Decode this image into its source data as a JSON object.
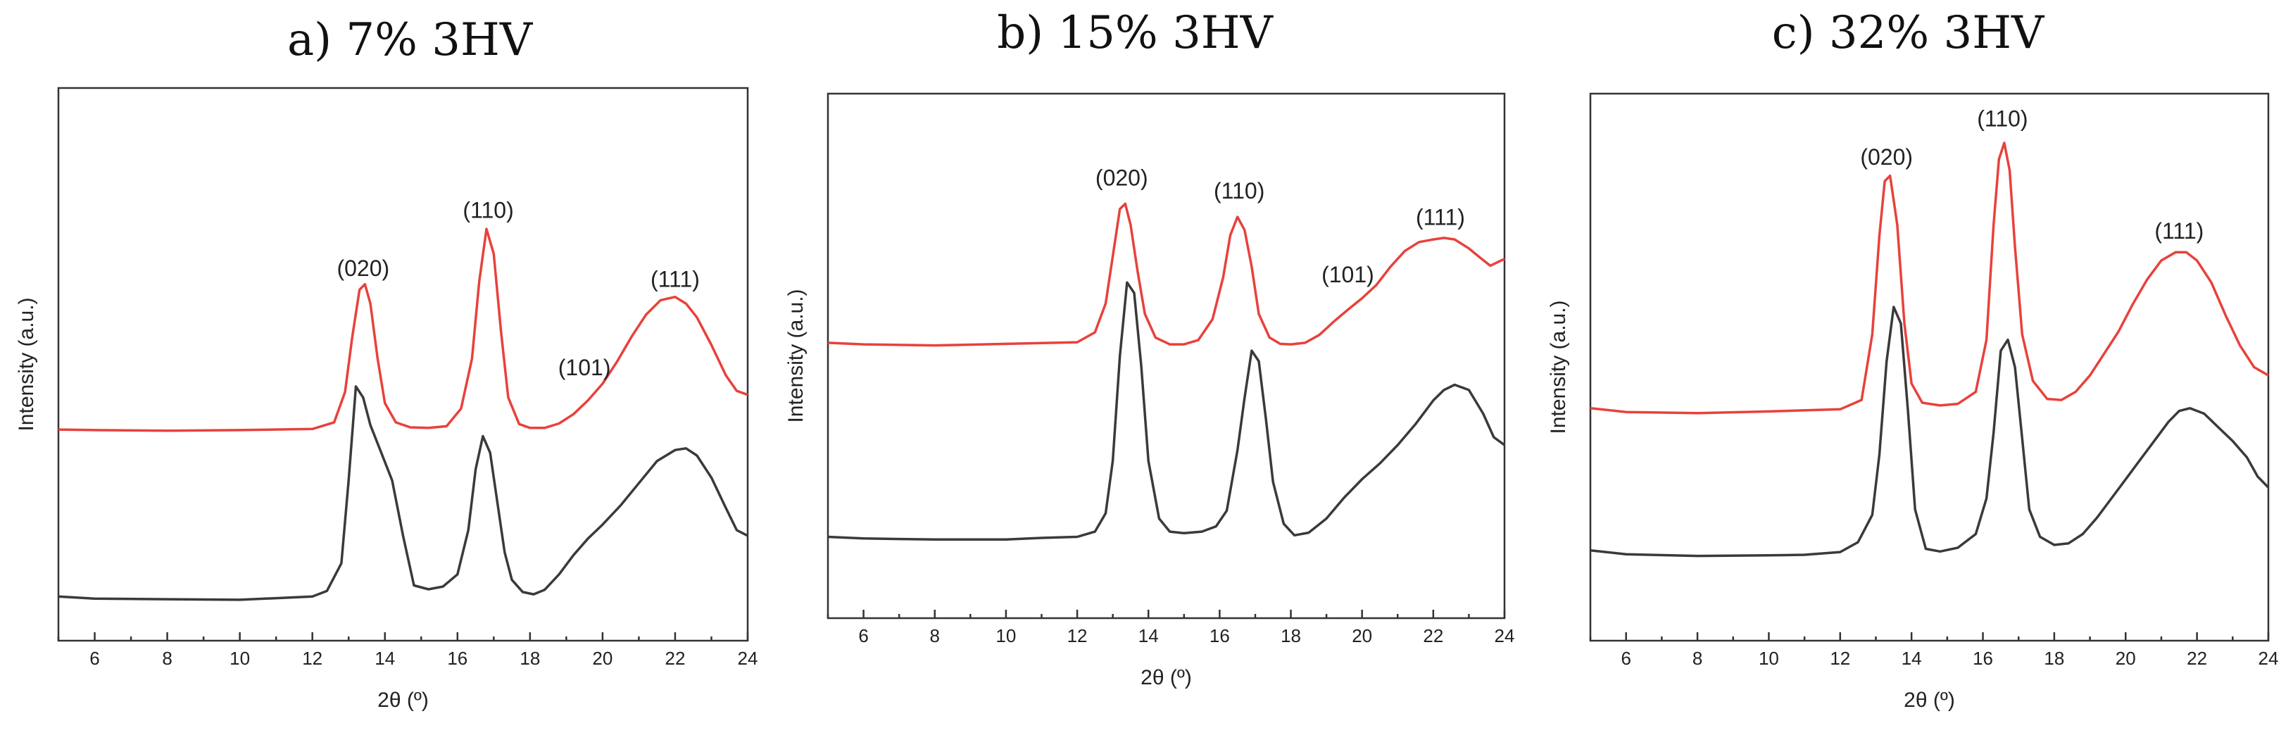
{
  "chart_data": [
    {
      "type": "line",
      "title": "a)  7% 3HV",
      "xlabel": "2θ (º)",
      "ylabel": "Intensity (a.u.)",
      "xlim": [
        5,
        24
      ],
      "ylim": [
        0,
        100
      ],
      "xticks": [
        6,
        8,
        10,
        12,
        14,
        16,
        18,
        20,
        22,
        24
      ],
      "series": [
        {
          "name": "upper (red)",
          "color": "#e8413c",
          "x": [
            5,
            6,
            8,
            10,
            12,
            12.6,
            12.9,
            13.1,
            13.3,
            13.45,
            13.6,
            13.8,
            14.0,
            14.3,
            14.7,
            15.2,
            15.7,
            16.1,
            16.4,
            16.6,
            16.8,
            17.0,
            17.2,
            17.4,
            17.7,
            18.0,
            18.4,
            18.8,
            19.2,
            19.6,
            20.0,
            20.4,
            20.8,
            21.2,
            21.6,
            22.0,
            22.3,
            22.6,
            23.0,
            23.4,
            23.7,
            24
          ],
          "y": [
            38.2,
            38.1,
            38.0,
            38.1,
            38.3,
            39.5,
            45,
            55,
            63.5,
            64.5,
            61,
            51,
            43,
            39.5,
            38.6,
            38.5,
            38.8,
            42,
            51,
            65,
            74.5,
            70,
            56,
            44,
            39.2,
            38.5,
            38.5,
            39.3,
            41,
            43.5,
            46.5,
            50.5,
            55,
            59,
            61.6,
            62.2,
            61,
            58.5,
            53.5,
            48,
            45.2,
            44.5
          ]
        },
        {
          "name": "lower (black)",
          "color": "#3a3a3a",
          "x": [
            5,
            6,
            8,
            10,
            11,
            12,
            12.4,
            12.8,
            13.0,
            13.2,
            13.4,
            13.6,
            13.9,
            14.2,
            14.5,
            14.8,
            15.2,
            15.6,
            16.0,
            16.3,
            16.5,
            16.7,
            16.9,
            17.1,
            17.3,
            17.5,
            17.8,
            18.1,
            18.4,
            18.8,
            19.2,
            19.6,
            20.0,
            20.5,
            21.0,
            21.5,
            22.0,
            22.3,
            22.6,
            23.0,
            23.4,
            23.7,
            24
          ],
          "y": [
            8.0,
            7.6,
            7.5,
            7.4,
            7.7,
            8.0,
            9.0,
            14,
            29,
            46,
            44,
            39,
            34,
            29,
            19,
            10,
            9.3,
            9.8,
            12,
            20,
            31,
            37,
            34,
            25,
            16,
            11,
            8.8,
            8.4,
            9.2,
            12,
            15.5,
            18.5,
            21,
            24.5,
            28.5,
            32.5,
            34.5,
            34.8,
            33.5,
            29.5,
            24,
            20,
            19
          ]
        }
      ],
      "annotations": [
        {
          "text": "(020)",
          "x": 13.4,
          "y": 66
        },
        {
          "text": "(110)",
          "x": 16.85,
          "y": 76.5
        },
        {
          "text": "(101)",
          "x": 19.5,
          "y": 48
        },
        {
          "text": "(111)",
          "x": 22.0,
          "y": 64
        }
      ]
    },
    {
      "type": "line",
      "title": "b) 15% 3HV",
      "xlabel": "2θ (º)",
      "ylabel": "Intensity (a.u.)",
      "xlim": [
        5,
        24
      ],
      "ylim": [
        0,
        100
      ],
      "xticks": [
        6,
        8,
        10,
        12,
        14,
        16,
        18,
        20,
        22,
        24
      ],
      "series": [
        {
          "name": "upper (red)",
          "color": "#e8413c",
          "x": [
            5,
            6,
            8,
            10,
            12,
            12.5,
            12.8,
            13.0,
            13.2,
            13.35,
            13.5,
            13.7,
            13.9,
            14.2,
            14.6,
            15.0,
            15.4,
            15.8,
            16.1,
            16.3,
            16.5,
            16.7,
            16.9,
            17.1,
            17.4,
            17.7,
            18.0,
            18.4,
            18.8,
            19.2,
            19.6,
            20.0,
            20.4,
            20.8,
            21.2,
            21.6,
            22.0,
            22.3,
            22.6,
            23.0,
            23.3,
            23.6,
            24
          ],
          "y": [
            52.5,
            52.2,
            52.0,
            52.3,
            52.6,
            54.5,
            60,
            69,
            78,
            79,
            75,
            66,
            58,
            53.5,
            52.2,
            52.2,
            53,
            57,
            65,
            73,
            76.5,
            74,
            67,
            58,
            53.5,
            52.3,
            52.2,
            52.5,
            54,
            56.5,
            58.8,
            61,
            63.5,
            67,
            70,
            71.7,
            72.2,
            72.5,
            72.2,
            70.5,
            68.8,
            67.2,
            68.5
          ]
        },
        {
          "name": "lower (black)",
          "color": "#3a3a3a",
          "x": [
            5,
            6,
            8,
            10,
            11,
            12,
            12.5,
            12.8,
            13.0,
            13.2,
            13.4,
            13.6,
            13.8,
            14.0,
            14.3,
            14.6,
            15.0,
            15.5,
            15.9,
            16.2,
            16.5,
            16.7,
            16.9,
            17.1,
            17.3,
            17.5,
            17.8,
            18.1,
            18.5,
            19.0,
            19.5,
            20.0,
            20.5,
            21.0,
            21.5,
            22.0,
            22.3,
            22.6,
            23.0,
            23.4,
            23.7,
            24
          ],
          "y": [
            15.5,
            15.2,
            15.0,
            15.0,
            15.3,
            15.5,
            16.5,
            20,
            30,
            50,
            64,
            62,
            48,
            30,
            19,
            16.5,
            16.2,
            16.5,
            17.5,
            20.5,
            32,
            42,
            51,
            49,
            38,
            26,
            18,
            15.8,
            16.3,
            19,
            23,
            26.5,
            29.5,
            33,
            37,
            41.5,
            43.5,
            44.5,
            43.5,
            39,
            34.5,
            33
          ]
        }
      ],
      "annotations": [
        {
          "text": "(020)",
          "x": 13.25,
          "y": 82.5
        },
        {
          "text": "(110)",
          "x": 16.55,
          "y": 80
        },
        {
          "text": "(101)",
          "x": 19.6,
          "y": 64
        },
        {
          "text": "(111)",
          "x": 22.2,
          "y": 75
        }
      ]
    },
    {
      "type": "line",
      "title": "c) 32% 3HV",
      "xlabel": "2θ (º)",
      "ylabel": "Intensity (a.u.)",
      "xlim": [
        5,
        24
      ],
      "ylim": [
        0,
        100
      ],
      "xticks": [
        6,
        8,
        10,
        12,
        14,
        16,
        18,
        20,
        22,
        24
      ],
      "series": [
        {
          "name": "upper (red)",
          "color": "#e8413c",
          "x": [
            5,
            6,
            8,
            10,
            12,
            12.6,
            12.9,
            13.1,
            13.25,
            13.4,
            13.6,
            13.8,
            14.0,
            14.3,
            14.8,
            15.3,
            15.8,
            16.1,
            16.3,
            16.45,
            16.6,
            16.75,
            16.9,
            17.1,
            17.4,
            17.8,
            18.2,
            18.6,
            19.0,
            19.4,
            19.8,
            20.2,
            20.6,
            21.0,
            21.4,
            21.7,
            22.0,
            22.4,
            22.8,
            23.2,
            23.6,
            24
          ],
          "y": [
            42.5,
            41.8,
            41.6,
            41.9,
            42.3,
            44,
            56,
            74,
            84,
            85,
            76,
            58,
            47,
            43.5,
            43,
            43.3,
            45.5,
            55,
            76,
            88,
            91,
            86,
            72,
            56,
            47.5,
            44.2,
            44,
            45.5,
            48.5,
            52.5,
            56.5,
            61.5,
            66,
            69.5,
            71,
            71,
            69.5,
            65.5,
            59.5,
            54,
            50,
            48.5
          ]
        },
        {
          "name": "lower (black)",
          "color": "#3a3a3a",
          "x": [
            5,
            6,
            8,
            10,
            11,
            12,
            12.5,
            12.9,
            13.1,
            13.3,
            13.5,
            13.7,
            13.9,
            14.1,
            14.4,
            14.8,
            15.3,
            15.8,
            16.1,
            16.3,
            16.5,
            16.7,
            16.9,
            17.1,
            17.3,
            17.6,
            18.0,
            18.4,
            18.8,
            19.2,
            19.6,
            20.0,
            20.4,
            20.8,
            21.2,
            21.5,
            21.8,
            22.2,
            22.6,
            23.0,
            23.4,
            23.7,
            24
          ],
          "y": [
            16.5,
            15.8,
            15.5,
            15.6,
            15.7,
            16.2,
            18,
            23,
            34,
            51,
            61,
            58,
            42,
            24,
            16.8,
            16.3,
            17,
            19.5,
            26,
            38,
            53,
            55,
            50,
            37,
            24,
            19,
            17.5,
            17.8,
            19.5,
            22.5,
            26,
            29.5,
            33,
            36.5,
            40,
            42,
            42.5,
            41.5,
            39,
            36.5,
            33.5,
            30,
            28
          ]
        }
      ],
      "annotations": [
        {
          "text": "(020)",
          "x": 13.3,
          "y": 87
        },
        {
          "text": "(110)",
          "x": 16.55,
          "y": 94
        },
        {
          "text": "(111)",
          "x": 21.5,
          "y": 73.5
        }
      ]
    }
  ]
}
